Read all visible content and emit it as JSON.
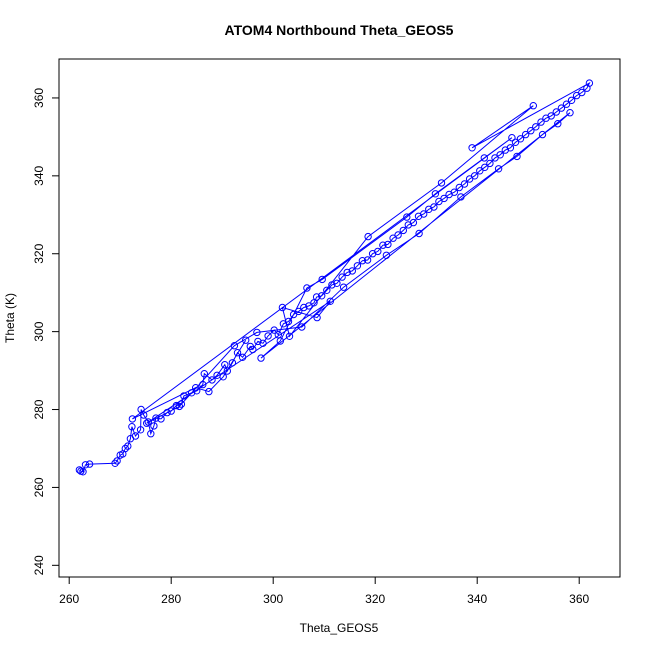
{
  "chart_data": {
    "type": "scatter",
    "title": "ATOM4 Northbound Theta_GEOS5",
    "xlabel": "Theta_GEOS5",
    "ylabel": "Theta (K)",
    "xlim": [
      258,
      368
    ],
    "ylim": [
      237,
      370
    ],
    "xticks": [
      260,
      280,
      300,
      320,
      340,
      360
    ],
    "yticks": [
      240,
      260,
      280,
      300,
      320,
      340,
      360
    ],
    "grid": false,
    "series": [
      {
        "color": "#0000ff",
        "marker": "open-circle",
        "line": true,
        "points": [
          [
            262.0,
            264.5
          ],
          [
            262.3,
            264.2
          ],
          [
            262.7,
            264.0
          ],
          [
            263.2,
            265.8
          ],
          [
            264.0,
            266.0
          ],
          [
            269.0,
            266.2
          ],
          [
            269.4,
            266.8
          ],
          [
            270.0,
            268.3
          ],
          [
            270.5,
            268.6
          ],
          [
            271.0,
            270.0
          ],
          [
            271.5,
            270.6
          ],
          [
            272.0,
            272.5
          ],
          [
            272.3,
            275.6
          ],
          [
            273.0,
            273.2
          ],
          [
            274.0,
            274.8
          ],
          [
            274.1,
            280.0
          ],
          [
            274.6,
            278.6
          ],
          [
            275.5,
            276.8
          ],
          [
            276.0,
            273.8
          ],
          [
            276.6,
            275.8
          ],
          [
            277.0,
            277.8
          ],
          [
            278.0,
            277.6
          ],
          [
            279.2,
            279.2
          ],
          [
            280.0,
            279.6
          ],
          [
            281.0,
            281.0
          ],
          [
            282.0,
            281.4
          ],
          [
            282.5,
            283.5
          ],
          [
            284.0,
            284.3
          ],
          [
            285.0,
            284.8
          ],
          [
            286.2,
            286.4
          ],
          [
            286.5,
            289.2
          ],
          [
            288.0,
            287.6
          ],
          [
            289.0,
            288.8
          ],
          [
            290.5,
            291.5
          ],
          [
            291.0,
            289.9
          ],
          [
            292.0,
            292.0
          ],
          [
            293.0,
            294.6
          ],
          [
            294.0,
            293.4
          ],
          [
            295.5,
            296.2
          ],
          [
            296.0,
            295.4
          ],
          [
            297.0,
            297.5
          ],
          [
            298.0,
            297.0
          ],
          [
            299.0,
            298.9
          ],
          [
            300.2,
            300.4
          ],
          [
            301.0,
            299.2
          ],
          [
            302.0,
            302.0
          ],
          [
            303.0,
            302.6
          ],
          [
            304.0,
            304.4
          ],
          [
            305.0,
            305.2
          ],
          [
            306.0,
            306.2
          ],
          [
            307.0,
            306.6
          ],
          [
            308.0,
            307.4
          ],
          [
            308.5,
            308.9
          ],
          [
            309.5,
            309.2
          ],
          [
            310.5,
            310.6
          ],
          [
            311.5,
            312.0
          ],
          [
            312.5,
            312.4
          ],
          [
            313.5,
            314.0
          ],
          [
            314.5,
            315.2
          ],
          [
            315.5,
            315.6
          ],
          [
            316.5,
            316.9
          ],
          [
            317.5,
            318.2
          ],
          [
            318.5,
            318.4
          ],
          [
            319.5,
            320.0
          ],
          [
            320.5,
            320.6
          ],
          [
            321.5,
            322.2
          ],
          [
            322.5,
            322.4
          ],
          [
            323.5,
            324.0
          ],
          [
            324.5,
            324.8
          ],
          [
            325.5,
            326.0
          ],
          [
            326.5,
            327.4
          ],
          [
            327.5,
            328.0
          ],
          [
            328.5,
            329.6
          ],
          [
            329.5,
            330.2
          ],
          [
            330.5,
            331.4
          ],
          [
            331.5,
            332.0
          ],
          [
            332.5,
            333.4
          ],
          [
            333.5,
            334.2
          ],
          [
            334.5,
            335.2
          ],
          [
            335.5,
            335.8
          ],
          [
            336.5,
            337.0
          ],
          [
            337.5,
            337.9
          ],
          [
            338.5,
            339.2
          ],
          [
            339.5,
            340.0
          ],
          [
            340.5,
            341.3
          ],
          [
            341.5,
            342.2
          ],
          [
            342.5,
            343.2
          ],
          [
            343.5,
            344.6
          ],
          [
            344.5,
            345.4
          ],
          [
            345.5,
            346.6
          ],
          [
            346.5,
            347.2
          ],
          [
            347.5,
            348.6
          ],
          [
            348.5,
            349.5
          ],
          [
            349.5,
            350.6
          ],
          [
            350.5,
            351.6
          ],
          [
            351.5,
            352.6
          ],
          [
            352.5,
            353.8
          ],
          [
            353.5,
            354.8
          ],
          [
            354.5,
            355.4
          ],
          [
            355.5,
            356.4
          ],
          [
            356.5,
            357.4
          ],
          [
            357.5,
            358.4
          ],
          [
            358.5,
            359.4
          ],
          [
            359.5,
            360.6
          ],
          [
            360.5,
            361.4
          ],
          [
            361.5,
            362.5
          ],
          [
            362.0,
            363.8
          ],
          [
            339.0,
            347.2
          ],
          [
            351.0,
            358.0
          ],
          [
            333.0,
            338.2
          ],
          [
            318.6,
            324.4
          ],
          [
            303.2,
            298.8
          ],
          [
            301.8,
            306.2
          ],
          [
            308.6,
            303.6
          ],
          [
            311.2,
            307.8
          ],
          [
            275.2,
            276.5
          ],
          [
            281.6,
            280.8
          ],
          [
            292.4,
            296.4
          ],
          [
            296.8,
            299.8
          ],
          [
            305.6,
            301.2
          ],
          [
            313.8,
            311.4
          ],
          [
            322.2,
            319.6
          ],
          [
            328.6,
            325.2
          ],
          [
            336.8,
            334.6
          ],
          [
            344.2,
            341.8
          ],
          [
            347.8,
            345.0
          ],
          [
            352.8,
            350.6
          ],
          [
            355.8,
            353.4
          ],
          [
            358.2,
            356.2
          ],
          [
            297.6,
            293.2
          ],
          [
            301.4,
            297.6
          ],
          [
            306.6,
            311.2
          ],
          [
            309.6,
            313.4
          ],
          [
            326.2,
            329.4
          ],
          [
            331.8,
            335.4
          ],
          [
            341.4,
            344.6
          ],
          [
            346.8,
            349.8
          ],
          [
            272.4,
            277.6
          ],
          [
            284.8,
            285.6
          ],
          [
            287.4,
            284.6
          ],
          [
            290.2,
            288.4
          ],
          [
            294.6,
            297.8
          ]
        ]
      }
    ]
  }
}
